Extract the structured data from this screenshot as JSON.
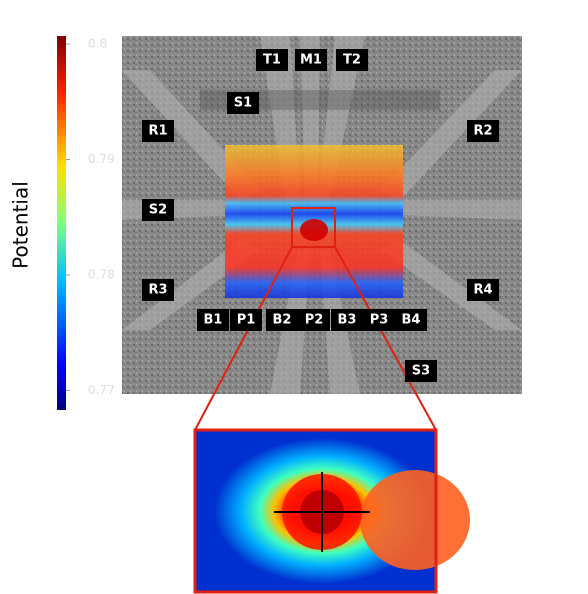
{
  "colorbar": {
    "label": "Potential",
    "lim": [
      0.7683,
      0.8007
    ],
    "ticks": [
      0.8,
      0.79,
      0.78,
      0.77
    ]
  },
  "electrodes": [
    "T1",
    "M1",
    "T2",
    "S1",
    "R1",
    "R2",
    "S2",
    "R3",
    "R4",
    "B1",
    "P1",
    "B2",
    "P2",
    "B3",
    "P3",
    "B4",
    "S3"
  ]
}
